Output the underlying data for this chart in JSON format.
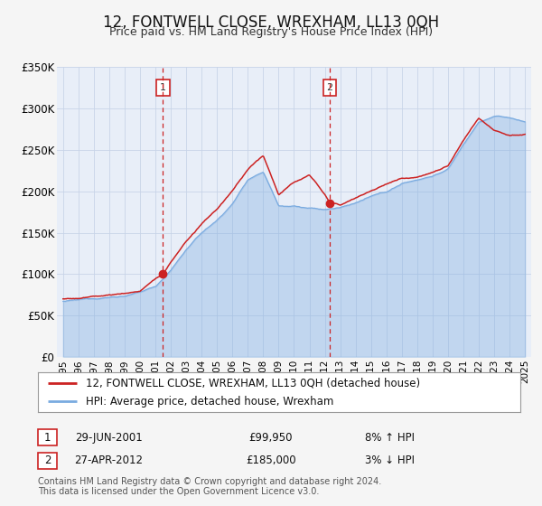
{
  "title": "12, FONTWELL CLOSE, WREXHAM, LL13 0QH",
  "subtitle": "Price paid vs. HM Land Registry's House Price Index (HPI)",
  "ylim": [
    0,
    350000
  ],
  "yticks": [
    0,
    50000,
    100000,
    150000,
    200000,
    250000,
    300000,
    350000
  ],
  "ytick_labels": [
    "£0",
    "£50K",
    "£100K",
    "£150K",
    "£200K",
    "£250K",
    "£300K",
    "£350K"
  ],
  "xlim_start": 1994.6,
  "xlim_end": 2025.4,
  "xtick_years": [
    1995,
    1996,
    1997,
    1998,
    1999,
    2000,
    2001,
    2002,
    2003,
    2004,
    2005,
    2006,
    2007,
    2008,
    2009,
    2010,
    2011,
    2012,
    2013,
    2014,
    2015,
    2016,
    2017,
    2018,
    2019,
    2020,
    2021,
    2022,
    2023,
    2024,
    2025
  ],
  "hpi_color": "#7aabe0",
  "price_color": "#cc2222",
  "fig_bg_color": "#f5f5f5",
  "plot_bg_color": "#e8eef8",
  "grid_color": "#c8d4e8",
  "sale1_x": 2001.49,
  "sale1_y": 99950,
  "sale2_x": 2012.32,
  "sale2_y": 185000,
  "sale1_date": "29-JUN-2001",
  "sale1_price": "£99,950",
  "sale1_hpi": "8% ↑ HPI",
  "sale2_date": "27-APR-2012",
  "sale2_price": "£185,000",
  "sale2_hpi": "3% ↓ HPI",
  "legend_line1": "12, FONTWELL CLOSE, WREXHAM, LL13 0QH (detached house)",
  "legend_line2": "HPI: Average price, detached house, Wrexham",
  "footnote1": "Contains HM Land Registry data © Crown copyright and database right 2024.",
  "footnote2": "This data is licensed under the Open Government Licence v3.0."
}
